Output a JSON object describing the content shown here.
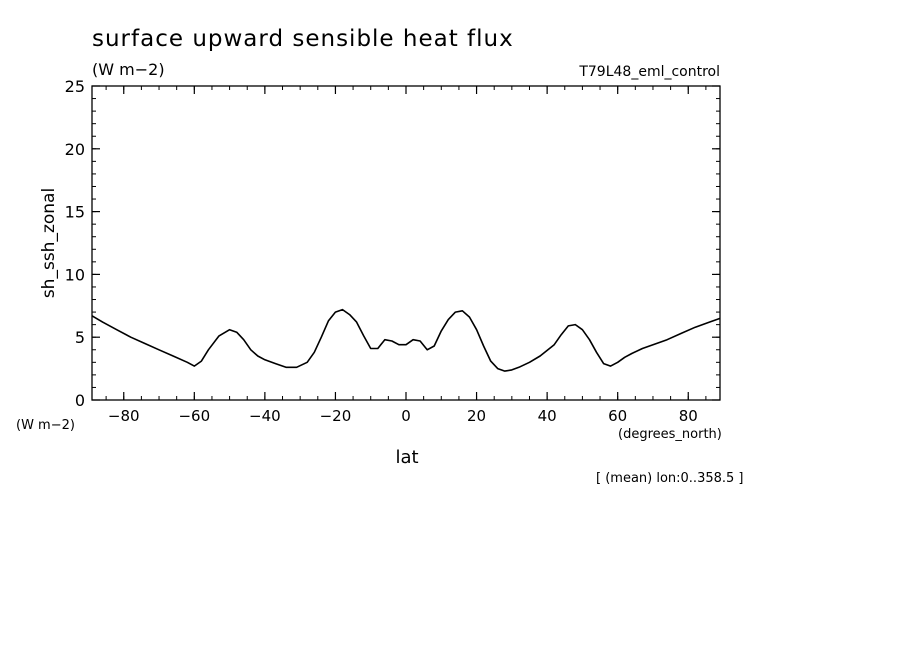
{
  "chart_data": {
    "type": "line",
    "title": "surface upward sensible heat flux",
    "units": "(W m−2)",
    "run_label": "T79L48_eml_control",
    "ylabel": "sh_ssh_zonal",
    "y_units": "(W m−2)",
    "xlabel": "lat",
    "x_units": "(degrees_north)",
    "footnote": "[ (mean) lon:0..358.5 ]",
    "xlim": [
      -89,
      89
    ],
    "ylim": [
      0,
      25
    ],
    "x_ticks": [
      -80,
      -60,
      -40,
      -20,
      0,
      20,
      40,
      60,
      80
    ],
    "x_tick_labels": [
      "−80",
      "−60",
      "−40",
      "−20",
      "0",
      "20",
      "40",
      "60",
      "80"
    ],
    "y_ticks": [
      0,
      5,
      10,
      15,
      20,
      25
    ],
    "y_tick_labels": [
      "0",
      "5",
      "10",
      "15",
      "20",
      "25"
    ],
    "grid": false,
    "series": [
      {
        "color": "#000000",
        "x": [
          -89,
          -86,
          -82,
          -78,
          -74,
          -70,
          -66,
          -62,
          -60,
          -58,
          -56,
          -53,
          -50,
          -48,
          -46,
          -44,
          -42,
          -40,
          -37,
          -34,
          -31,
          -28,
          -26,
          -24,
          -22,
          -20,
          -18,
          -16,
          -14,
          -12,
          -10,
          -8,
          -6,
          -4,
          -2,
          0,
          2,
          4,
          6,
          8,
          10,
          12,
          14,
          16,
          18,
          20,
          22,
          24,
          26,
          28,
          30,
          32,
          35,
          38,
          42,
          44,
          46,
          48,
          50,
          52,
          54,
          56,
          58,
          60,
          62,
          64,
          67,
          70,
          74,
          78,
          82,
          86,
          89
        ],
        "y": [
          6.7,
          6.2,
          5.6,
          5.0,
          4.5,
          4.0,
          3.5,
          3.0,
          2.7,
          3.1,
          4.0,
          5.1,
          5.6,
          5.4,
          4.8,
          4.0,
          3.5,
          3.2,
          2.9,
          2.6,
          2.6,
          3.0,
          3.8,
          5.0,
          6.3,
          7.0,
          7.2,
          6.8,
          6.2,
          5.1,
          4.1,
          4.1,
          4.8,
          4.7,
          4.4,
          4.4,
          4.8,
          4.7,
          4.0,
          4.3,
          5.5,
          6.4,
          7.0,
          7.1,
          6.6,
          5.6,
          4.3,
          3.1,
          2.5,
          2.3,
          2.4,
          2.6,
          3.0,
          3.5,
          4.4,
          5.2,
          5.9,
          6.0,
          5.6,
          4.8,
          3.8,
          2.9,
          2.7,
          3.0,
          3.4,
          3.7,
          4.1,
          4.4,
          4.8,
          5.3,
          5.8,
          6.2,
          6.5
        ]
      }
    ]
  }
}
